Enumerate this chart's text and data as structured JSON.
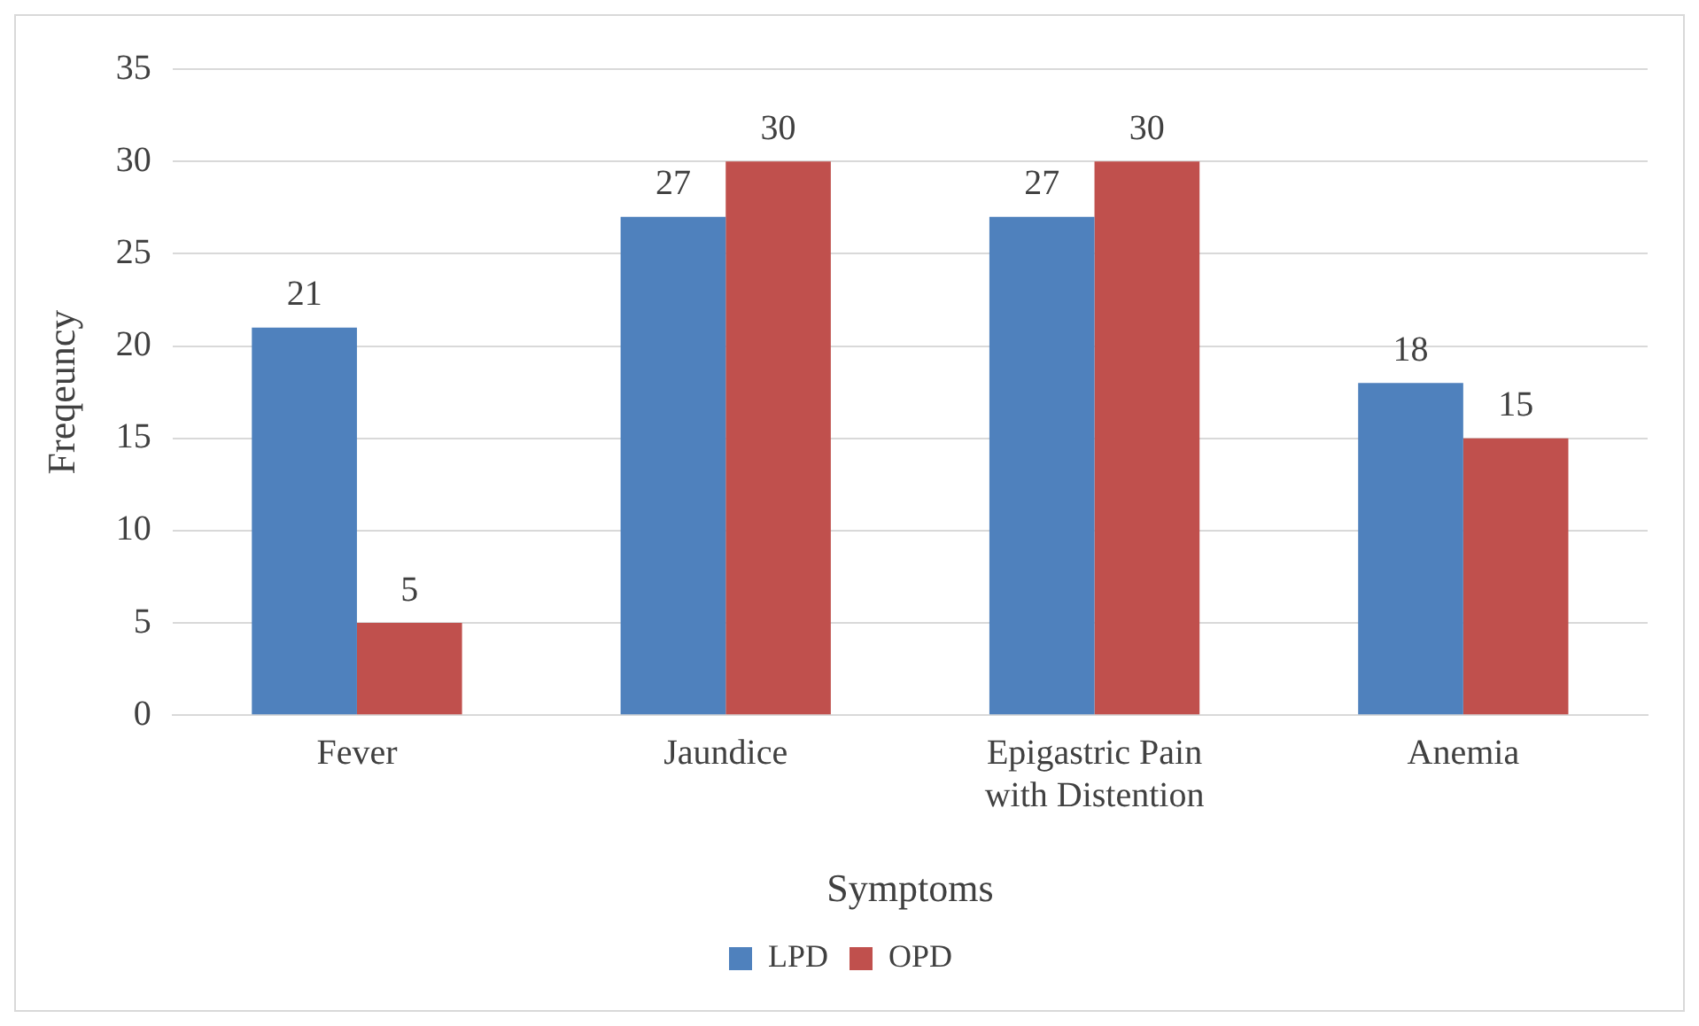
{
  "chart_data": {
    "type": "bar",
    "xlabel": "Symptoms",
    "ylabel": "Freqeuncy",
    "categories": [
      "Fever",
      "Jaundice",
      "Epigastric Pain with Distention",
      "Anemia"
    ],
    "series": [
      {
        "name": "LPD",
        "color": "#4f81bd",
        "values": [
          21,
          27,
          27,
          18
        ]
      },
      {
        "name": "OPD",
        "color": "#c0504d",
        "values": [
          5,
          30,
          30,
          15
        ]
      }
    ],
    "ylim": [
      0,
      35
    ],
    "yticks": [
      0,
      5,
      10,
      15,
      20,
      25,
      30,
      35
    ],
    "grid": "y",
    "legend": "bottom",
    "data_labels": true
  }
}
